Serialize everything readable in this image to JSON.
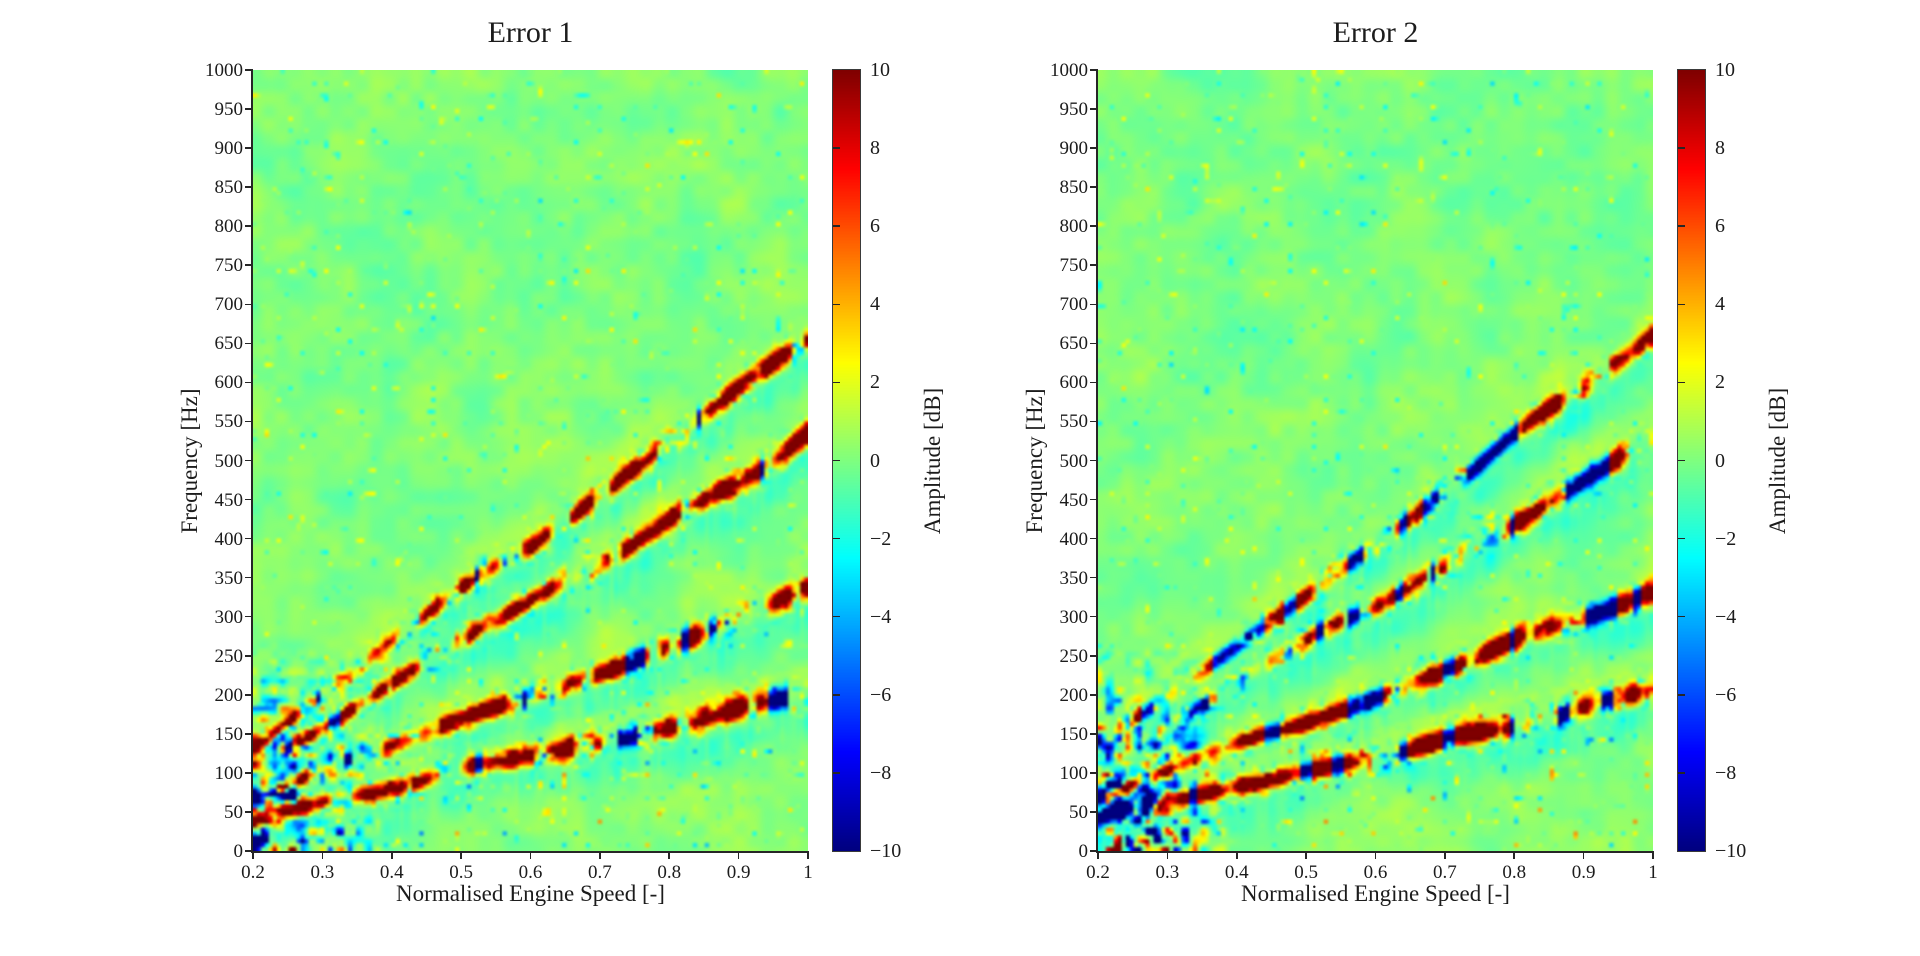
{
  "figure": {
    "background_color": "#ffffff",
    "text_color": "#1c1c1c",
    "axis_color": "#262626"
  },
  "chart_data": [
    {
      "type": "heatmap",
      "title": "Error 1",
      "xlabel": "Normalised Engine Speed [-]",
      "ylabel": "Frequency [Hz]",
      "xlim": [
        0.2,
        1.0
      ],
      "ylim": [
        0,
        1000
      ],
      "xtick_values": [
        0.2,
        0.3,
        0.4,
        0.5,
        0.6,
        0.7,
        0.8,
        0.9,
        1
      ],
      "xtick_labels": [
        "0.2",
        "0.3",
        "0.4",
        "0.5",
        "0.6",
        "0.7",
        "0.8",
        "0.9",
        "1"
      ],
      "ytick_values": [
        0,
        50,
        100,
        150,
        200,
        250,
        300,
        350,
        400,
        450,
        500,
        550,
        600,
        650,
        700,
        750,
        800,
        850,
        900,
        950,
        1000
      ],
      "ytick_labels": [
        "0",
        "50",
        "100",
        "150",
        "200",
        "250",
        "300",
        "350",
        "400",
        "450",
        "500",
        "550",
        "600",
        "650",
        "700",
        "750",
        "800",
        "850",
        "900",
        "950",
        "1000"
      ],
      "colorbar": {
        "label": "Amplitude [dB]",
        "min": -10,
        "max": 10,
        "tick_values": [
          10,
          8,
          6,
          4,
          2,
          0,
          -2,
          -4,
          -6,
          -8,
          -10
        ],
        "tick_labels": [
          "10",
          "8",
          "6",
          "4",
          "2",
          "0",
          "−2",
          "−4",
          "−6",
          "−8",
          "−10"
        ],
        "colormap": "jet",
        "max_color": "#800000",
        "zero_color": "#80ff80",
        "min_color": "#000080"
      },
      "background_amplitude_db": 0,
      "engine_order_lines": [
        {
          "slope_hz_per_unit_speed": 200,
          "peak_amplitude_db": 10,
          "relative_strength": 1.15
        },
        {
          "slope_hz_per_unit_speed": 330,
          "peak_amplitude_db": 10,
          "relative_strength": 1.1
        },
        {
          "slope_hz_per_unit_speed": 530,
          "peak_amplitude_db": 10,
          "relative_strength": 1.0
        },
        {
          "slope_hz_per_unit_speed": 660,
          "peak_amplitude_db": 10,
          "relative_strength": 0.95
        }
      ],
      "line_negative_threshold": -0.74,
      "negative_segments": [],
      "low_speed_cluster": {
        "speed_max": 0.4,
        "freq_max_hz": 270,
        "negative_bias": 1.15
      },
      "negative_blobs": [
        {
          "speed_range": [
            0.21,
            0.275
          ],
          "freq_range": [
            55,
            125
          ],
          "amplitude_db": -9
        },
        {
          "speed_range": [
            0.24,
            0.31
          ],
          "freq_range": [
            10,
            45
          ],
          "amplitude_db": -8
        }
      ],
      "render_seed": 1101
    },
    {
      "type": "heatmap",
      "title": "Error 2",
      "xlabel": "Normalised Engine Speed [-]",
      "ylabel": "Frequency [Hz]",
      "xlim": [
        0.2,
        1.0
      ],
      "ylim": [
        0,
        1000
      ],
      "xtick_values": [
        0.2,
        0.3,
        0.4,
        0.5,
        0.6,
        0.7,
        0.8,
        0.9,
        1
      ],
      "xtick_labels": [
        "0.2",
        "0.3",
        "0.4",
        "0.5",
        "0.6",
        "0.7",
        "0.8",
        "0.9",
        "1"
      ],
      "ytick_values": [
        0,
        50,
        100,
        150,
        200,
        250,
        300,
        350,
        400,
        450,
        500,
        550,
        600,
        650,
        700,
        750,
        800,
        850,
        900,
        950,
        1000
      ],
      "ytick_labels": [
        "0",
        "50",
        "100",
        "150",
        "200",
        "250",
        "300",
        "350",
        "400",
        "450",
        "500",
        "550",
        "600",
        "650",
        "700",
        "750",
        "800",
        "850",
        "900",
        "950",
        "1000"
      ],
      "colorbar": {
        "label": "Amplitude [dB]",
        "min": -10,
        "max": 10,
        "tick_values": [
          10,
          8,
          6,
          4,
          2,
          0,
          -2,
          -4,
          -6,
          -8,
          -10
        ],
        "tick_labels": [
          "10",
          "8",
          "6",
          "4",
          "2",
          "0",
          "−2",
          "−4",
          "−6",
          "−8",
          "−10"
        ],
        "colormap": "jet",
        "max_color": "#800000",
        "zero_color": "#80ff80",
        "min_color": "#000080"
      },
      "background_amplitude_db": 0,
      "engine_order_lines": [
        {
          "slope_hz_per_unit_speed": 200,
          "peak_amplitude_db": 10,
          "relative_strength": 1.15
        },
        {
          "slope_hz_per_unit_speed": 330,
          "peak_amplitude_db": 10,
          "relative_strength": 1.1
        },
        {
          "slope_hz_per_unit_speed": 530,
          "peak_amplitude_db": 10,
          "relative_strength": 1.0
        },
        {
          "slope_hz_per_unit_speed": 660,
          "peak_amplitude_db": 10,
          "relative_strength": 0.95
        }
      ],
      "line_negative_threshold": -0.52,
      "negative_segments": [
        {
          "line_index": 3,
          "speed_range": [
            0.73,
            0.8
          ]
        },
        {
          "line_index": 2,
          "speed_range": [
            0.9,
            0.94
          ]
        }
      ],
      "low_speed_cluster": {
        "speed_max": 0.4,
        "freq_max_hz": 270,
        "negative_bias": 1.45
      },
      "negative_blobs": [
        {
          "speed_range": [
            0.205,
            0.285
          ],
          "freq_range": [
            40,
            110
          ],
          "amplitude_db": -11
        },
        {
          "speed_range": [
            0.3,
            0.36
          ],
          "freq_range": [
            120,
            160
          ],
          "amplitude_db": -7
        }
      ],
      "render_seed": 2202
    }
  ]
}
